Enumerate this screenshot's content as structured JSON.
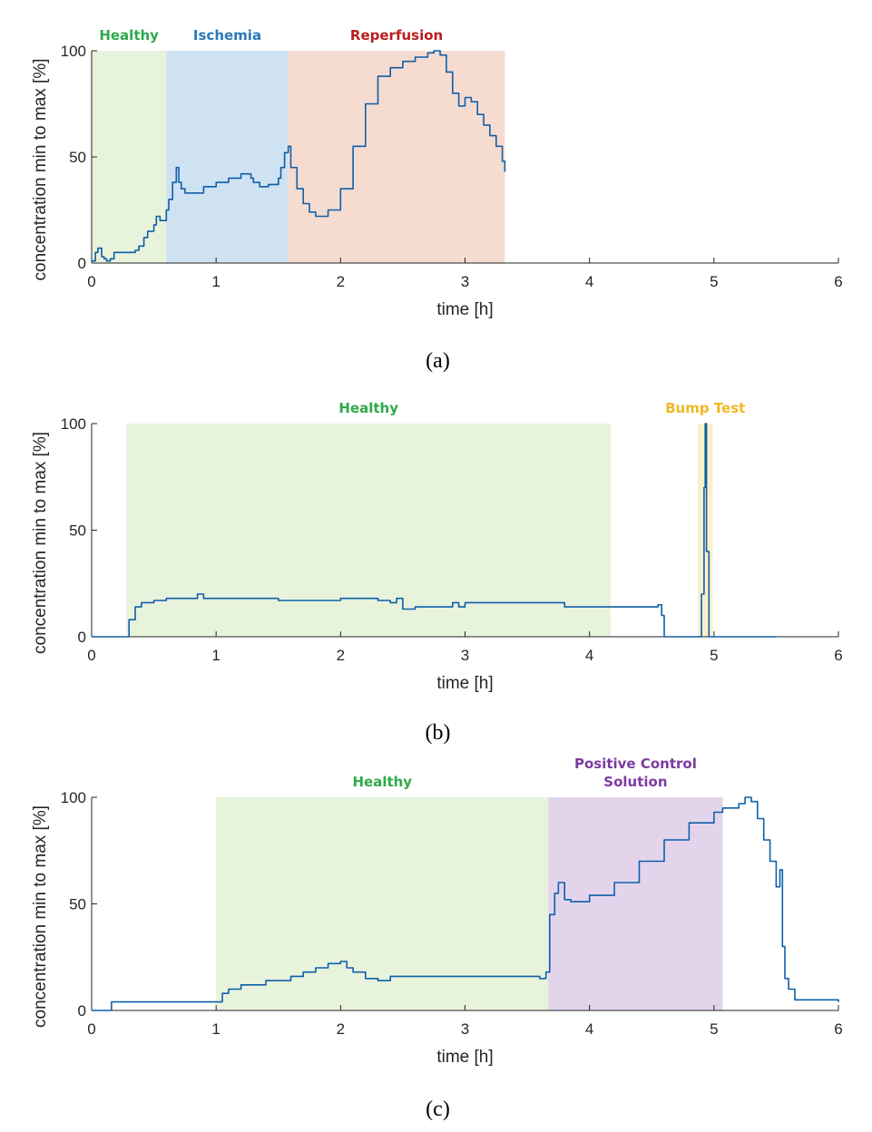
{
  "chart_data": [
    {
      "panel": "(a)",
      "type": "line",
      "xlabel": "time [h]",
      "ylabel": "concentration min to max [%]",
      "xlim": [
        0,
        6
      ],
      "ylim": [
        0,
        100
      ],
      "xticks": [
        0,
        1,
        2,
        3,
        4,
        5,
        6
      ],
      "yticks": [
        0,
        50,
        100
      ],
      "regions": [
        {
          "label": "Healthy",
          "x0": 0,
          "x1": 0.6,
          "fill": "#e8f3dc",
          "text_color": "#2eaa4a"
        },
        {
          "label": "Ischemia",
          "x0": 0.6,
          "x1": 1.58,
          "fill": "#cfe2f2",
          "text_color": "#2c78b8"
        },
        {
          "label": "Reperfusion",
          "x0": 1.58,
          "x1": 3.32,
          "fill": "#f6dbd1",
          "text_color": "#b81e1e"
        }
      ],
      "series": [
        {
          "x": [
            0,
            0.03,
            0.05,
            0.08,
            0.1,
            0.12,
            0.15,
            0.18,
            0.22,
            0.28,
            0.35,
            0.38,
            0.42,
            0.45,
            0.5,
            0.52,
            0.55,
            0.6,
            0.62,
            0.65,
            0.68,
            0.7,
            0.72,
            0.75,
            0.8,
            0.9,
            1.0,
            1.1,
            1.2,
            1.28,
            1.3,
            1.35,
            1.42,
            1.5,
            1.52,
            1.55,
            1.58,
            1.6,
            1.65,
            1.7,
            1.75,
            1.8,
            1.85,
            1.9,
            2.0,
            2.1,
            2.2,
            2.3,
            2.4,
            2.5,
            2.6,
            2.7,
            2.75,
            2.8,
            2.85,
            2.9,
            2.95,
            3.0,
            3.05,
            3.1,
            3.15,
            3.2,
            3.25,
            3.3,
            3.32
          ],
          "y": [
            1,
            5,
            7,
            3,
            2,
            1,
            2,
            5,
            5,
            5,
            6,
            8,
            12,
            15,
            18,
            22,
            20,
            25,
            30,
            38,
            45,
            38,
            35,
            33,
            33,
            36,
            38,
            40,
            42,
            40,
            38,
            36,
            37,
            40,
            45,
            52,
            55,
            45,
            35,
            28,
            24,
            22,
            22,
            25,
            35,
            55,
            75,
            88,
            92,
            95,
            97,
            99,
            100,
            98,
            90,
            80,
            74,
            78,
            76,
            70,
            65,
            60,
            55,
            48,
            43
          ]
        }
      ]
    },
    {
      "panel": "(b)",
      "type": "line",
      "xlabel": "time [h]",
      "ylabel": "concentration min to max [%]",
      "xlim": [
        0,
        6
      ],
      "ylim": [
        0,
        100
      ],
      "xticks": [
        0,
        1,
        2,
        3,
        4,
        5,
        6
      ],
      "yticks": [
        0,
        50,
        100
      ],
      "regions": [
        {
          "label": "Healthy",
          "x0": 0.28,
          "x1": 4.17,
          "fill": "#e8f3dc",
          "text_color": "#2eaa4a"
        },
        {
          "label": "Bump Test",
          "x0": 4.87,
          "x1": 4.99,
          "fill": "#fbf0cc",
          "text_color": "#f0b820"
        }
      ],
      "series": [
        {
          "x": [
            0,
            0.28,
            0.3,
            0.35,
            0.4,
            0.5,
            0.6,
            0.8,
            0.85,
            0.9,
            1.0,
            1.5,
            1.8,
            2.0,
            2.2,
            2.3,
            2.4,
            2.45,
            2.5,
            2.6,
            2.8,
            2.9,
            2.95,
            3.0,
            3.05,
            3.5,
            3.8,
            4.0,
            4.2,
            4.4,
            4.5,
            4.55,
            4.58,
            4.6,
            4.88,
            4.9,
            4.92,
            4.93,
            4.94,
            4.96,
            5.0,
            5.5
          ],
          "y": [
            0,
            0,
            8,
            14,
            16,
            17,
            18,
            18,
            20,
            18,
            18,
            17,
            17,
            18,
            18,
            17,
            16,
            18,
            13,
            14,
            14,
            16,
            14,
            16,
            16,
            16,
            14,
            14,
            14,
            14,
            14,
            15,
            10,
            0,
            0,
            20,
            70,
            100,
            40,
            0,
            0,
            0
          ]
        }
      ]
    },
    {
      "panel": "(c)",
      "type": "line",
      "xlabel": "time [h]",
      "ylabel": "concentration min to max [%]",
      "xlim": [
        0,
        6
      ],
      "ylim": [
        0,
        100
      ],
      "xticks": [
        0,
        1,
        2,
        3,
        4,
        5,
        6
      ],
      "yticks": [
        0,
        50,
        100
      ],
      "regions": [
        {
          "label": "Healthy",
          "x0": 1.0,
          "x1": 3.67,
          "fill": "#e8f3dc",
          "text_color": "#2eaa4a"
        },
        {
          "label_lines": [
            "Positive Control",
            "Solution"
          ],
          "x0": 3.67,
          "x1": 5.07,
          "fill": "#e3d4ec",
          "text_color": "#7d3aa0"
        }
      ],
      "series": [
        {
          "x": [
            0,
            0.15,
            0.16,
            0.2,
            0.5,
            0.8,
            1.0,
            1.05,
            1.1,
            1.2,
            1.4,
            1.6,
            1.7,
            1.8,
            1.9,
            2.0,
            2.05,
            2.1,
            2.2,
            2.3,
            2.4,
            2.5,
            2.8,
            3.0,
            3.3,
            3.5,
            3.6,
            3.65,
            3.68,
            3.72,
            3.75,
            3.8,
            3.85,
            4.0,
            4.2,
            4.4,
            4.6,
            4.8,
            5.0,
            5.07,
            5.2,
            5.25,
            5.3,
            5.35,
            5.4,
            5.45,
            5.5,
            5.53,
            5.55,
            5.57,
            5.6,
            5.65,
            6.0
          ],
          "y": [
            0,
            0,
            4,
            4,
            4,
            4,
            4,
            8,
            10,
            12,
            14,
            16,
            18,
            20,
            22,
            23,
            20,
            18,
            15,
            14,
            16,
            16,
            16,
            16,
            16,
            16,
            15,
            18,
            45,
            55,
            60,
            52,
            51,
            54,
            60,
            70,
            80,
            88,
            93,
            95,
            97,
            100,
            98,
            90,
            80,
            70,
            58,
            66,
            30,
            15,
            10,
            5,
            4
          ]
        }
      ]
    }
  ],
  "captions": [
    "(a)",
    "(b)",
    "(c)"
  ]
}
